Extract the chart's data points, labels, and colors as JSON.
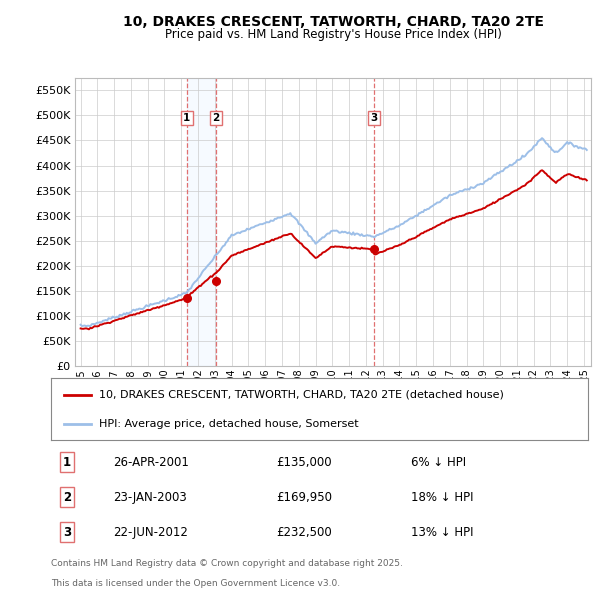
{
  "title": "10, DRAKES CRESCENT, TATWORTH, CHARD, TA20 2TE",
  "subtitle": "Price paid vs. HM Land Registry's House Price Index (HPI)",
  "ytick_values": [
    0,
    50000,
    100000,
    150000,
    200000,
    250000,
    300000,
    350000,
    400000,
    450000,
    500000,
    550000
  ],
  "ytick_labels": [
    "£0",
    "£50K",
    "£100K",
    "£150K",
    "£200K",
    "£250K",
    "£300K",
    "£350K",
    "£400K",
    "£450K",
    "£500K",
    "£550K"
  ],
  "ylim": [
    0,
    575000
  ],
  "hpi_color": "#9dbfe8",
  "price_color": "#cc0000",
  "vline_color": "#e07070",
  "shade_color": "#ddeeff",
  "sale_dates": [
    "2001-04-26",
    "2003-01-23",
    "2012-06-22"
  ],
  "sale_prices": [
    135000,
    169950,
    232500
  ],
  "sale_labels": [
    "1",
    "2",
    "3"
  ],
  "legend1": "10, DRAKES CRESCENT, TATWORTH, CHARD, TA20 2TE (detached house)",
  "legend2": "HPI: Average price, detached house, Somerset",
  "table_entries": [
    {
      "num": "1",
      "date": "26-APR-2001",
      "price": "£135,000",
      "pct": "6% ↓ HPI"
    },
    {
      "num": "2",
      "date": "23-JAN-2003",
      "price": "£169,950",
      "pct": "18% ↓ HPI"
    },
    {
      "num": "3",
      "date": "22-JUN-2012",
      "price": "£232,500",
      "pct": "13% ↓ HPI"
    }
  ],
  "footnote1": "Contains HM Land Registry data © Crown copyright and database right 2025.",
  "footnote2": "This data is licensed under the Open Government Licence v3.0.",
  "background_color": "#ffffff",
  "grid_color": "#cccccc"
}
